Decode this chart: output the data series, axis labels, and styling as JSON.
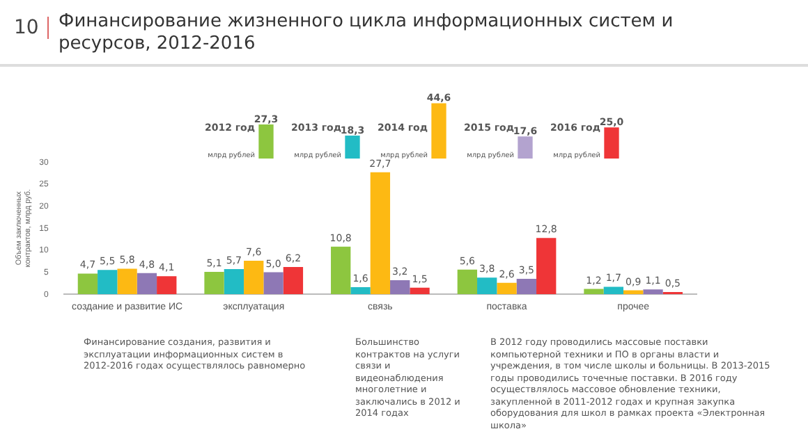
{
  "chart_data": [
    {
      "type": "bar",
      "title": "Финансирование жизненного цикла информационных систем и ресурсов, 2012-2016",
      "annotations": [
        "10"
      ],
      "ylabel": "млрд рублей",
      "categories": [
        "2012 год",
        "2013 год",
        "2014 год",
        "2015 год",
        "2016 год"
      ],
      "values": [
        27.3,
        18.3,
        44.6,
        17.6,
        25.0
      ],
      "colors": [
        "#8dc63f",
        "#22bcc5",
        "#fdb913",
        "#b3a3cf",
        "#ef3537"
      ],
      "value_labels": [
        "27,3",
        "18,3",
        "44,6",
        "17,6",
        "25,0"
      ]
    },
    {
      "type": "bar",
      "ylabel": "Объем заключенных контрактов, млрд руб.",
      "categories": [
        "создание и развитие ИС",
        "эксплуатация",
        "связь",
        "поставка",
        "прочее"
      ],
      "ylim": [
        0,
        30
      ],
      "yticks": [
        0,
        5,
        10,
        15,
        20,
        25,
        30
      ],
      "series": [
        {
          "color": "#8dc63f",
          "values": [
            4.7,
            5.1,
            10.8,
            5.6,
            1.2
          ],
          "value_labels": [
            "4,7",
            "5,1",
            "10,8",
            "5,6",
            "1,2"
          ]
        },
        {
          "color": "#22bcc5",
          "values": [
            5.5,
            5.7,
            1.6,
            3.8,
            1.7
          ],
          "value_labels": [
            "5,5",
            "5,7",
            "1,6",
            "3,8",
            "1,7"
          ]
        },
        {
          "color": "#fdb913",
          "values": [
            5.8,
            7.6,
            27.7,
            2.6,
            0.9
          ],
          "value_labels": [
            "5,8",
            "7,6",
            "27,7",
            "2,6",
            "0,9"
          ]
        },
        {
          "color": "#8e78b5",
          "values": [
            4.8,
            5.0,
            3.2,
            3.5,
            1.1
          ],
          "value_labels": [
            "4,8",
            "5,0",
            "3,2",
            "3,5",
            "1,1"
          ]
        },
        {
          "color": "#ef3537",
          "values": [
            4.1,
            6.2,
            1.5,
            12.8,
            0.5
          ],
          "value_labels": [
            "4,1",
            "6,2",
            "1,5",
            "12,8",
            "0,5"
          ]
        }
      ],
      "annotations": [
        "Финансирование создания, развития и эксплуатации информационных систем в 2012-2016 годах осуществлялось равномерно",
        "Большинство контрактов на услуги связи и видеонаблюдения многолетние и заключались в 2012 и 2014 годах",
        "В 2012 году проводились массовые поставки компьютерной техники и ПО в органы власти и учреждения, в том числе школы и больницы. В 2013-2015 годы проводились точечные поставки. В 2016 году осуществлялось массовое обновление техники, закупленной в 2011-2012 годах и крупная закупка оборудования для школ в рамках проекта «Электронная школа»"
      ]
    }
  ]
}
